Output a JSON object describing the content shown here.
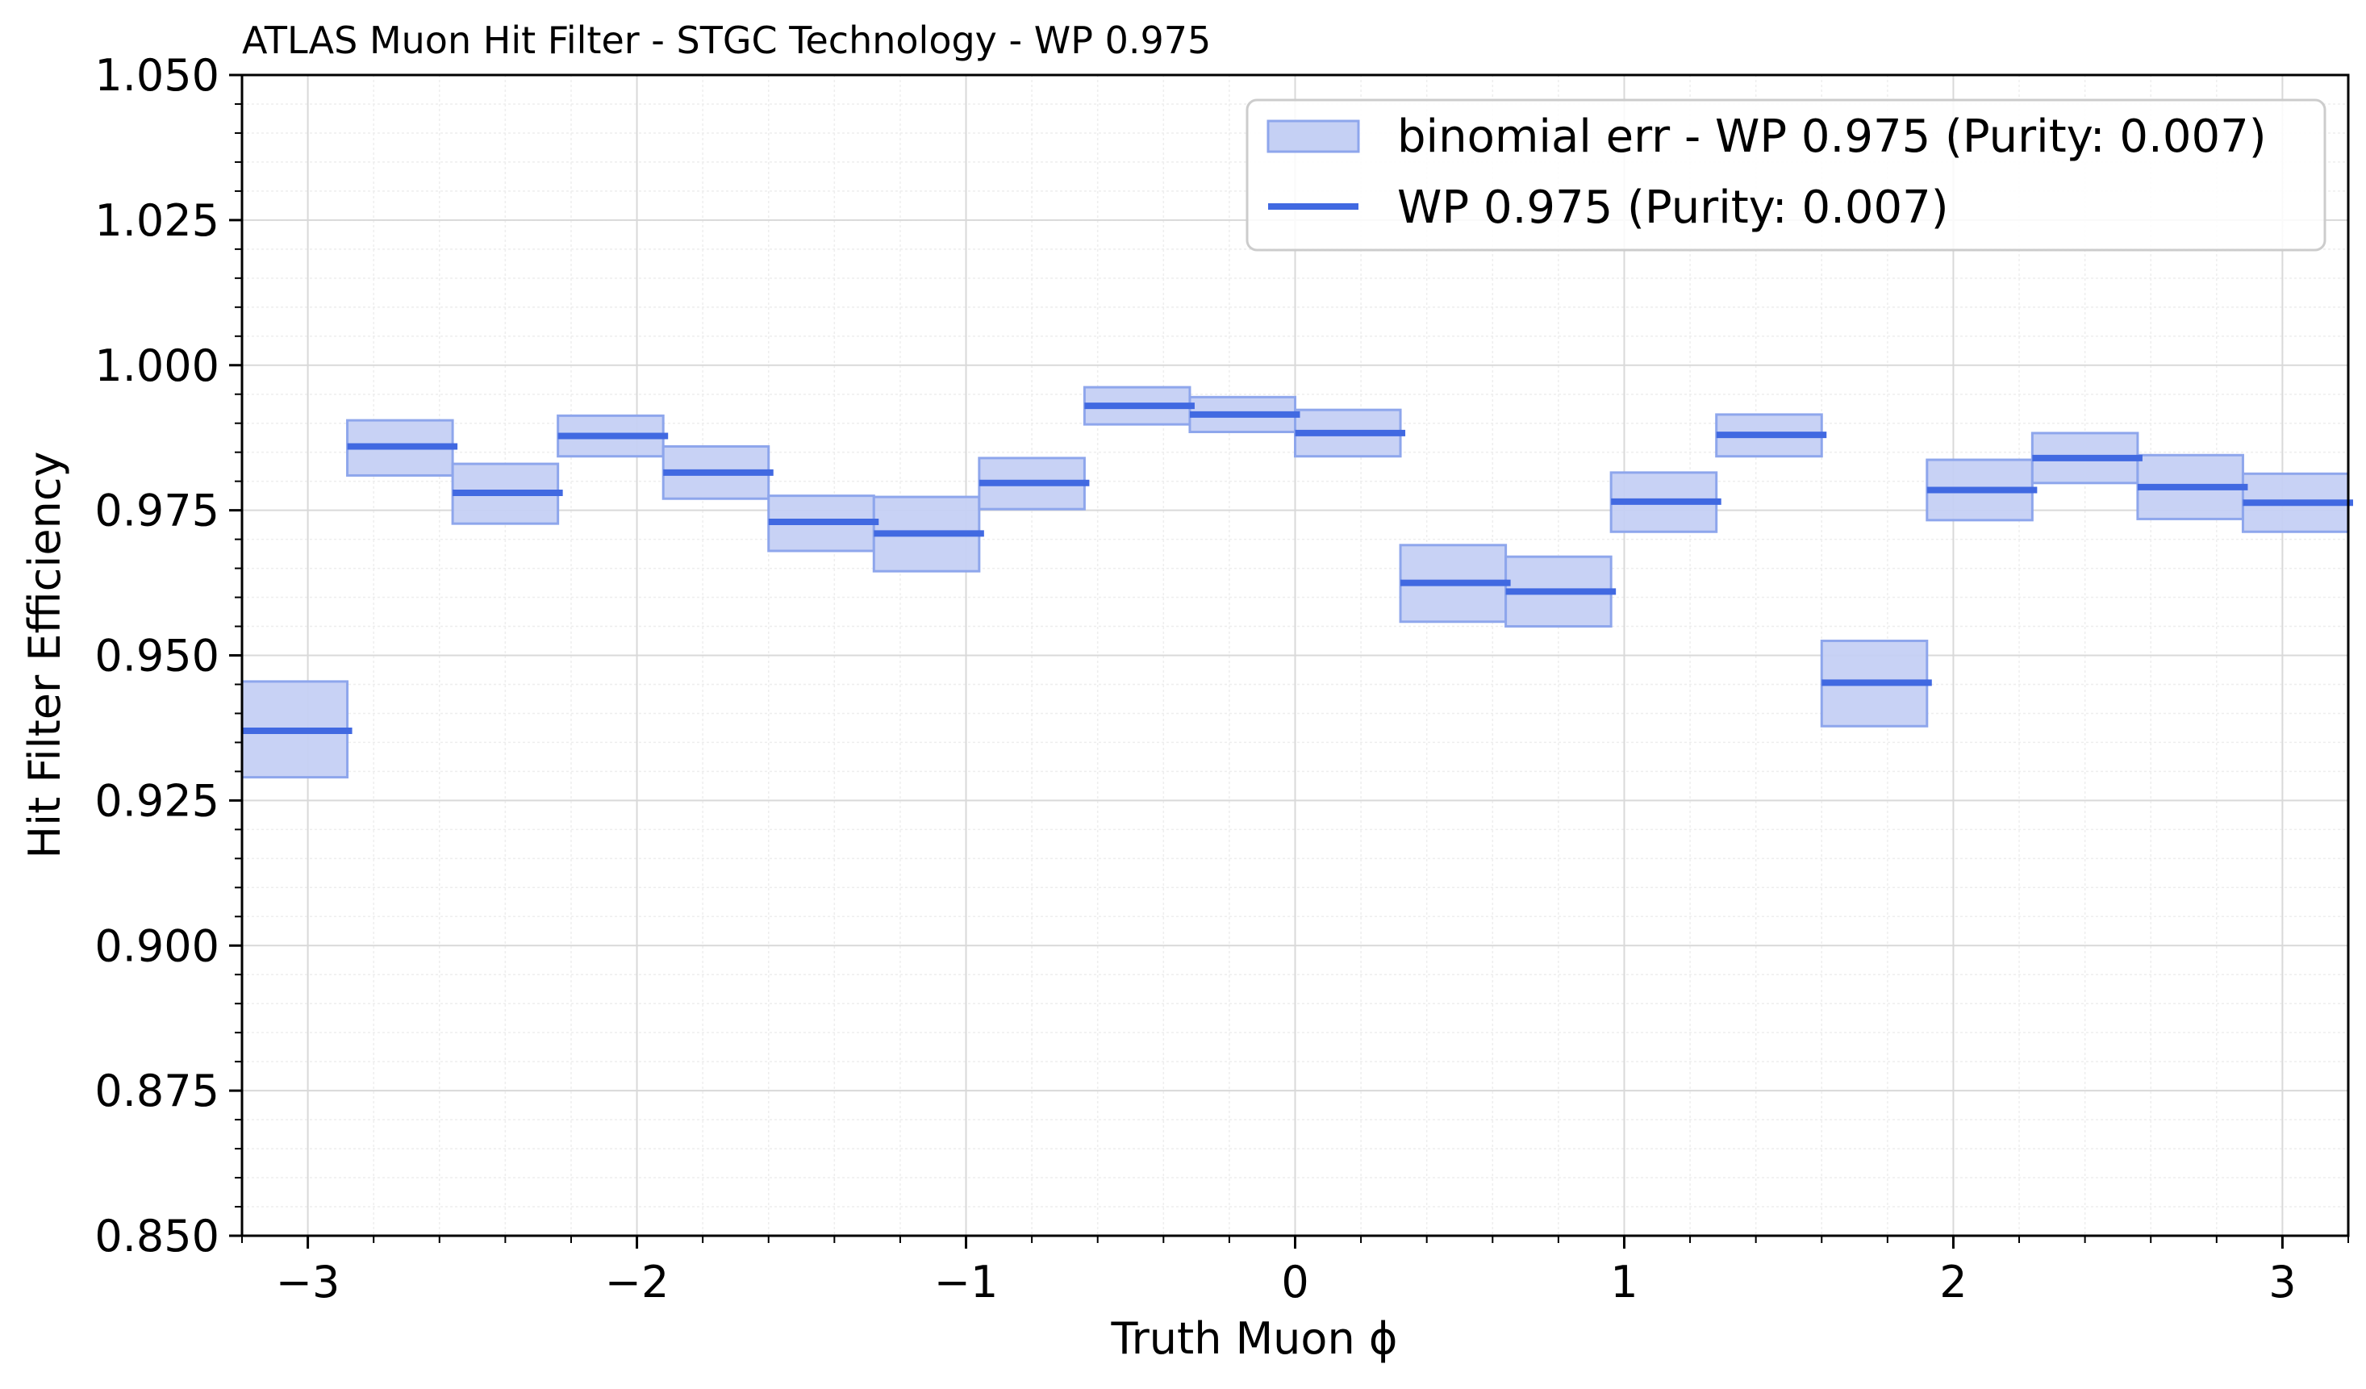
{
  "chart_data": {
    "type": "bar",
    "title": "ATLAS Muon Hit Filter - STGC Technology - WP 0.975",
    "xlabel": "Truth Muon ϕ",
    "ylabel": "Hit Filter Efficiency",
    "xlim": [
      -3.2,
      3.2
    ],
    "ylim": [
      0.85,
      1.05
    ],
    "x_ticks": [
      -3,
      -2,
      -1,
      0,
      1,
      2,
      3
    ],
    "x_tick_labels": [
      "−3",
      "−2",
      "−1",
      "0",
      "1",
      "2",
      "3"
    ],
    "y_ticks": [
      0.85,
      0.875,
      0.9,
      0.925,
      0.95,
      0.975,
      1.0,
      1.025,
      1.05
    ],
    "y_tick_labels": [
      "0.850",
      "0.875",
      "0.900",
      "0.925",
      "0.950",
      "0.975",
      "1.000",
      "1.025",
      "1.050"
    ],
    "grid": true,
    "legend_position": "top-right",
    "colors": {
      "line": "#4169e1",
      "band_fill": "#c5d0f4",
      "band_edge": "#8ea6ec"
    },
    "series": [
      {
        "name": "WP 0.975 (Purity: 0.007)",
        "band_name": "binomial err - WP 0.975 (Purity: 0.007)",
        "bins": [
          {
            "x_low": -3.2,
            "x_high": -2.88,
            "y": 0.937,
            "err_low": 0.929,
            "err_high": 0.9455
          },
          {
            "x_low": -2.88,
            "x_high": -2.56,
            "y": 0.986,
            "err_low": 0.981,
            "err_high": 0.9905
          },
          {
            "x_low": -2.56,
            "x_high": -2.24,
            "y": 0.978,
            "err_low": 0.9727,
            "err_high": 0.983
          },
          {
            "x_low": -2.24,
            "x_high": -1.92,
            "y": 0.9878,
            "err_low": 0.9843,
            "err_high": 0.9913
          },
          {
            "x_low": -1.92,
            "x_high": -1.6,
            "y": 0.9815,
            "err_low": 0.977,
            "err_high": 0.986
          },
          {
            "x_low": -1.6,
            "x_high": -1.28,
            "y": 0.973,
            "err_low": 0.968,
            "err_high": 0.9775
          },
          {
            "x_low": -1.28,
            "x_high": -0.96,
            "y": 0.971,
            "err_low": 0.9645,
            "err_high": 0.9773
          },
          {
            "x_low": -0.96,
            "x_high": -0.64,
            "y": 0.9797,
            "err_low": 0.9752,
            "err_high": 0.984
          },
          {
            "x_low": -0.64,
            "x_high": -0.32,
            "y": 0.993,
            "err_low": 0.9898,
            "err_high": 0.9962
          },
          {
            "x_low": -0.32,
            "x_high": 0.0,
            "y": 0.9915,
            "err_low": 0.9885,
            "err_high": 0.9945
          },
          {
            "x_low": 0.0,
            "x_high": 0.32,
            "y": 0.9883,
            "err_low": 0.9843,
            "err_high": 0.9923
          },
          {
            "x_low": 0.32,
            "x_high": 0.64,
            "y": 0.9625,
            "err_low": 0.9558,
            "err_high": 0.969
          },
          {
            "x_low": 0.64,
            "x_high": 0.96,
            "y": 0.961,
            "err_low": 0.955,
            "err_high": 0.967
          },
          {
            "x_low": 0.96,
            "x_high": 1.28,
            "y": 0.9765,
            "err_low": 0.9713,
            "err_high": 0.9815
          },
          {
            "x_low": 1.28,
            "x_high": 1.6,
            "y": 0.988,
            "err_low": 0.9843,
            "err_high": 0.9915
          },
          {
            "x_low": 1.6,
            "x_high": 1.92,
            "y": 0.9453,
            "err_low": 0.9378,
            "err_high": 0.9525
          },
          {
            "x_low": 1.92,
            "x_high": 2.24,
            "y": 0.9785,
            "err_low": 0.9733,
            "err_high": 0.9837
          },
          {
            "x_low": 2.24,
            "x_high": 2.56,
            "y": 0.984,
            "err_low": 0.9797,
            "err_high": 0.9883
          },
          {
            "x_low": 2.56,
            "x_high": 2.88,
            "y": 0.979,
            "err_low": 0.9735,
            "err_high": 0.9845
          },
          {
            "x_low": 2.88,
            "x_high": 3.2,
            "y": 0.9763,
            "err_low": 0.9713,
            "err_high": 0.9813
          }
        ]
      }
    ]
  }
}
